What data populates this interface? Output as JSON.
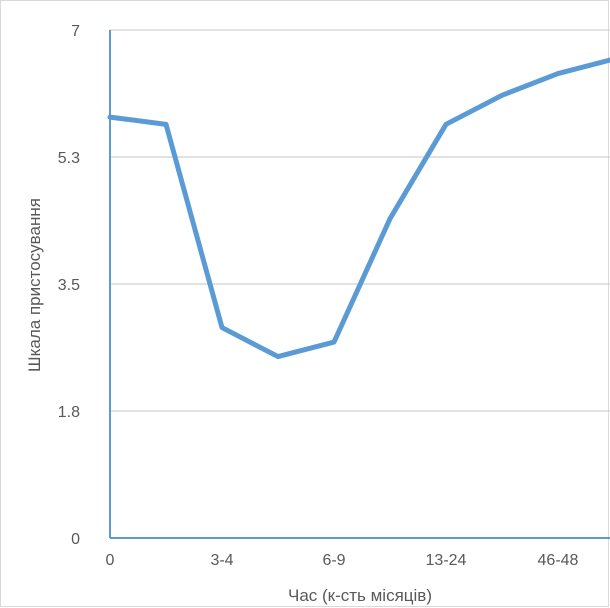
{
  "chart_data": {
    "type": "line",
    "xlabel": "Час (к-сть місяців)",
    "ylabel": "Шкала пристосування",
    "ylim": [
      0,
      7
    ],
    "yticks": [
      "0",
      "1.8",
      "3.5",
      "5.3",
      "7"
    ],
    "ytick_values": [
      0,
      1.75,
      3.5,
      5.25,
      7
    ],
    "categories": [
      "0",
      "",
      "3-4",
      "",
      "6-9",
      "",
      "13-24",
      "",
      "46-48",
      ""
    ],
    "x_tick_labels": [
      "0",
      "3-4",
      "6-9",
      "13-24",
      "46-48"
    ],
    "series": [
      {
        "values": [
          5.8,
          5.7,
          2.9,
          2.5,
          2.7,
          4.4,
          5.7,
          6.1,
          6.4,
          6.6
        ]
      }
    ],
    "grid": "horizontal",
    "line_color": "#5b9bd5",
    "axis_color": "#5b9bd5",
    "grid_color": "#d9d9d9"
  }
}
